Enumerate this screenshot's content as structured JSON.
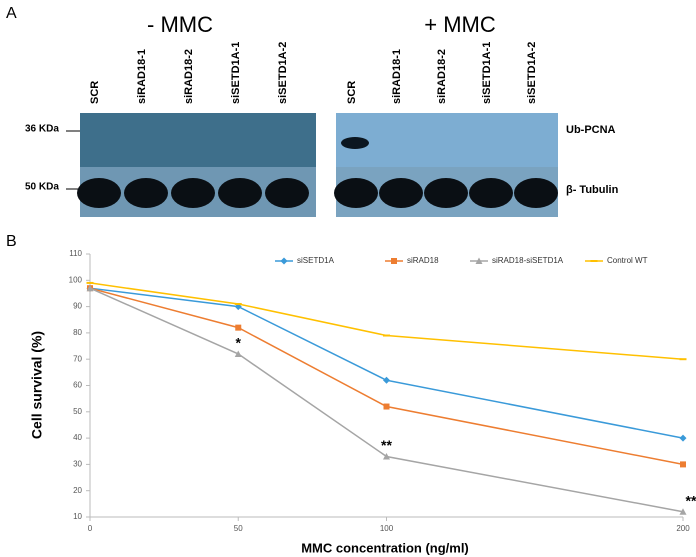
{
  "panel_a": {
    "label": "A",
    "left_title": "- MMC",
    "right_title": "+ MMC",
    "lanes": [
      "SCR",
      "siRAD18-1",
      "siRAD18-2",
      "siSETD1A-1",
      "siSETD1A-2"
    ],
    "markers": [
      "36 KDa",
      "50 KDa"
    ],
    "bands": [
      "Ub-PCNA",
      "β- Tubulin"
    ]
  },
  "chart_data": {
    "type": "line",
    "label": "B",
    "xlabel": "MMC concentration (ng/ml)",
    "ylabel": "Cell survival (%)",
    "x": [
      0,
      50,
      100,
      200
    ],
    "xlim": [
      0,
      200
    ],
    "xticks": [
      0,
      50,
      100,
      200
    ],
    "ylim": [
      10,
      110
    ],
    "yticks": [
      10,
      20,
      30,
      40,
      50,
      60,
      70,
      80,
      90,
      100,
      110
    ],
    "series": [
      {
        "name": "siSETD1A",
        "color": "#3a9ad9",
        "marker": "diamond",
        "values": [
          97,
          90,
          62,
          40
        ]
      },
      {
        "name": "siRAD18",
        "color": "#ed7d31",
        "marker": "square",
        "values": [
          97,
          82,
          52,
          30
        ]
      },
      {
        "name": "siRAD18-siSETD1A",
        "color": "#a5a5a5",
        "marker": "triangle",
        "values": [
          97,
          72,
          33,
          12
        ]
      },
      {
        "name": "Control WT",
        "color": "#ffc000",
        "marker": "dash",
        "values": [
          99,
          91,
          79,
          70
        ]
      }
    ],
    "annotations": [
      {
        "text": "*",
        "x": 50
      },
      {
        "text": "**",
        "x": 100
      },
      {
        "text": "**",
        "x": 200
      }
    ]
  }
}
